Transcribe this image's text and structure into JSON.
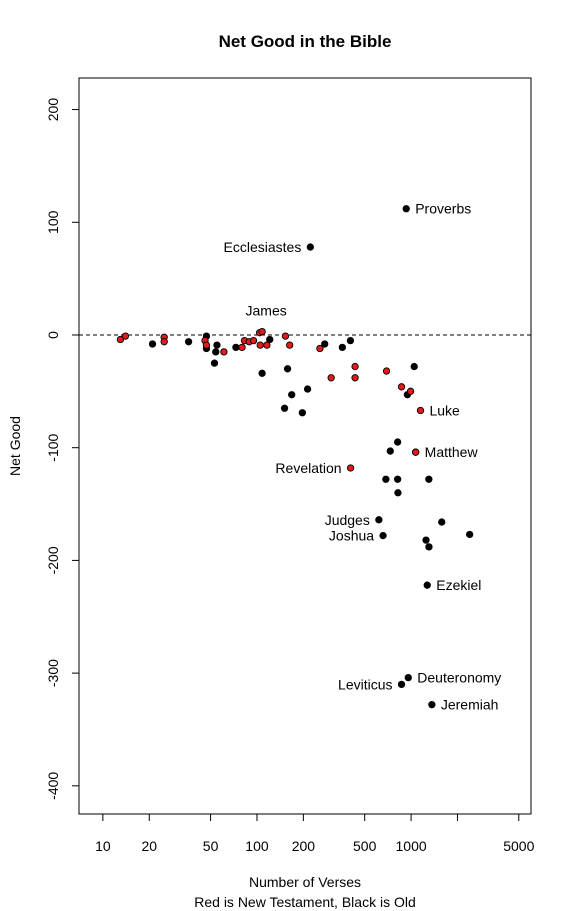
{
  "chart_data": {
    "type": "scatter",
    "title": "Net Good in the Bible",
    "xlabel": "Number of Verses",
    "xlabel2": "Red is New Testament, Black is Old",
    "ylabel": "Net Good",
    "x_scale": "log",
    "xlim": [
      7,
      6000
    ],
    "ylim": [
      -425,
      228
    ],
    "x_ticks": [
      10,
      20,
      50,
      100,
      200,
      500,
      1000,
      5000
    ],
    "x_minor_ticks": [
      2000
    ],
    "y_ticks": [
      200,
      100,
      0,
      -100,
      -200,
      -300,
      -400
    ],
    "reference_line": {
      "y": 0,
      "style": "dashed"
    },
    "colors": {
      "new_testament": "#e31a1c",
      "old_testament": "#000000"
    },
    "series": [
      {
        "name": "Old Testament",
        "color": "#000000",
        "points": [
          [
            930,
            112
          ],
          [
            222,
            78
          ],
          [
            21,
            -8
          ],
          [
            36,
            -6
          ],
          [
            47,
            -12
          ],
          [
            47,
            -1
          ],
          [
            55,
            -9
          ],
          [
            54,
            -15
          ],
          [
            73,
            -11
          ],
          [
            53,
            -25
          ],
          [
            108,
            -34
          ],
          [
            121,
            -4
          ],
          [
            158,
            -30
          ],
          [
            168,
            -53
          ],
          [
            197,
            -69
          ],
          [
            213,
            -48
          ],
          [
            151,
            -65
          ],
          [
            275,
            -8
          ],
          [
            358,
            -11
          ],
          [
            404,
            -5
          ],
          [
            1048,
            -28
          ],
          [
            946,
            -53
          ],
          [
            733,
            -103
          ],
          [
            818,
            -95
          ],
          [
            686,
            -128
          ],
          [
            818,
            -128
          ],
          [
            822,
            -140
          ],
          [
            1304,
            -128
          ],
          [
            1070,
            -104
          ],
          [
            618,
            -164
          ],
          [
            658,
            -178
          ],
          [
            1581,
            -166
          ],
          [
            2400,
            -177
          ],
          [
            1250,
            -182
          ],
          [
            1306,
            -188
          ],
          [
            1273,
            -222
          ],
          [
            959,
            -304
          ],
          [
            867,
            -310
          ],
          [
            1364,
            -328
          ]
        ],
        "labels": [
          "Proverbs",
          "Ecclesiastes",
          "",
          "",
          "",
          "",
          "",
          "",
          "",
          "",
          "",
          "",
          "",
          "",
          "",
          "",
          "",
          "",
          "",
          "",
          "",
          "",
          "",
          "",
          "",
          "",
          "",
          "",
          "",
          "Judges",
          "Joshua",
          "",
          "",
          "",
          "",
          "Ezekiel",
          "Deuteronomy",
          "Leviticus",
          "Jeremiah"
        ]
      },
      {
        "name": "New Testament",
        "color": "#e31a1c",
        "points": [
          [
            13,
            -4
          ],
          [
            14,
            -1
          ],
          [
            25,
            -2
          ],
          [
            25,
            -6
          ],
          [
            46,
            -5
          ],
          [
            47,
            -9
          ],
          [
            61,
            -15
          ],
          [
            80,
            -11
          ],
          [
            83,
            -5
          ],
          [
            89,
            -6
          ],
          [
            95,
            -5
          ],
          [
            104,
            2
          ],
          [
            108,
            3
          ],
          [
            105,
            -9
          ],
          [
            116,
            -9
          ],
          [
            153,
            -1
          ],
          [
            163,
            -9
          ],
          [
            256,
            -12
          ],
          [
            303,
            -38
          ],
          [
            433,
            -28
          ],
          [
            433,
            -38
          ],
          [
            693,
            -32
          ],
          [
            867,
            -46
          ],
          [
            992,
            -50
          ],
          [
            1151,
            -67
          ],
          [
            1071,
            -104
          ],
          [
            405,
            -118
          ]
        ],
        "labels": [
          "",
          "",
          "",
          "",
          "",
          "",
          "",
          "",
          "",
          "",
          "",
          "",
          "James",
          "",
          "",
          "",
          "",
          "",
          "",
          "",
          "",
          "",
          "",
          "",
          "Luke",
          "Matthew",
          "Revelation"
        ]
      }
    ]
  }
}
